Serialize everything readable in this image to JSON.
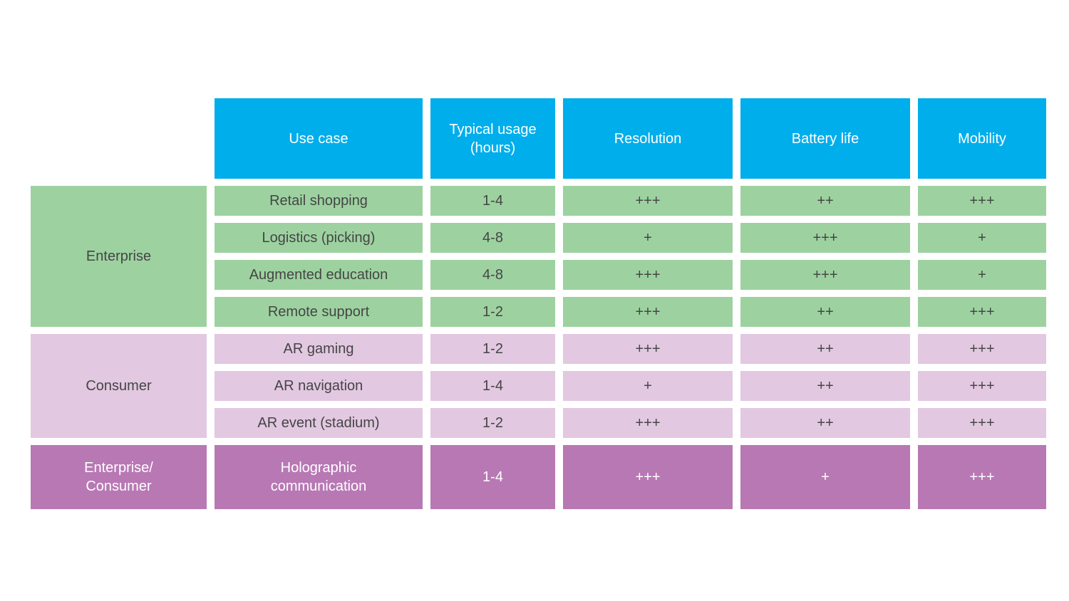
{
  "colors": {
    "header_bg": "#00aeeb",
    "enterprise_bg": "#9dd2a0",
    "consumer_bg": "#e2c8e1",
    "mixed_bg": "#b878b4",
    "text_dark": "#454545",
    "text_light": "#ffffff",
    "page_bg": "#ffffff"
  },
  "chart_data": {
    "type": "table",
    "columns": [
      "Use case",
      "Typical usage (hours)",
      "Resolution",
      "Battery life",
      "Mobility"
    ],
    "column_display": [
      "Use case",
      "Typical usage\n(hours)",
      "Resolution",
      "Battery life",
      "Mobility"
    ],
    "rating_scale": [
      "+",
      "++",
      "+++"
    ],
    "row_groups": [
      {
        "group": "Enterprise",
        "group_display": "Enterprise",
        "rows": [
          {
            "use_case": "Retail shopping",
            "use_case_display": "Retail shopping",
            "typical_usage_hours": "1-4",
            "resolution": "+++",
            "battery_life": "++",
            "mobility": "+++"
          },
          {
            "use_case": "Logistics (picking)",
            "use_case_display": "Logistics (picking)",
            "typical_usage_hours": "4-8",
            "resolution": "+",
            "battery_life": "+++",
            "mobility": "+"
          },
          {
            "use_case": "Augmented education",
            "use_case_display": "Augmented education",
            "typical_usage_hours": "4-8",
            "resolution": "+++",
            "battery_life": "+++",
            "mobility": "+"
          },
          {
            "use_case": "Remote support",
            "use_case_display": "Remote support",
            "typical_usage_hours": "1-2",
            "resolution": "+++",
            "battery_life": "++",
            "mobility": "+++"
          }
        ]
      },
      {
        "group": "Consumer",
        "group_display": "Consumer",
        "rows": [
          {
            "use_case": "AR gaming",
            "use_case_display": "AR gaming",
            "typical_usage_hours": "1-2",
            "resolution": "+++",
            "battery_life": "++",
            "mobility": "+++"
          },
          {
            "use_case": "AR navigation",
            "use_case_display": "AR navigation",
            "typical_usage_hours": "1-4",
            "resolution": "+",
            "battery_life": "++",
            "mobility": "+++"
          },
          {
            "use_case": "AR event (stadium)",
            "use_case_display": "AR event (stadium)",
            "typical_usage_hours": "1-2",
            "resolution": "+++",
            "battery_life": "++",
            "mobility": "+++"
          }
        ]
      },
      {
        "group": "Enterprise/Consumer",
        "group_display": "Enterprise/\nConsumer",
        "rows": [
          {
            "use_case": "Holographic communication",
            "use_case_display": "Holographic\ncommunication",
            "typical_usage_hours": "1-4",
            "resolution": "+++",
            "battery_life": "+",
            "mobility": "+++"
          }
        ]
      }
    ]
  }
}
